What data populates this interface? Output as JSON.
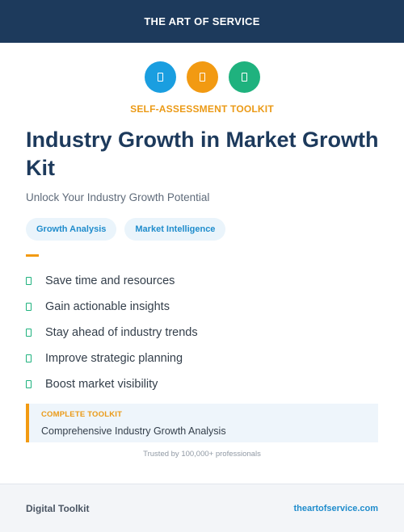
{
  "header": {
    "brand": "THE ART OF SERVICE"
  },
  "icons": [
    {
      "name": "document-icon",
      "color": "#1a9ee0"
    },
    {
      "name": "document-icon",
      "color": "#f29a12"
    },
    {
      "name": "document-icon",
      "color": "#1fb27e"
    }
  ],
  "kicker": "SELF-ASSESSMENT TOOLKIT",
  "title": "Industry Growth in Market Growth Kit",
  "subtitle": "Unlock Your Industry Growth Potential",
  "tags": [
    "Growth Analysis",
    "Market Intelligence"
  ],
  "benefits": [
    "Save time and resources",
    "Gain actionable insights",
    "Stay ahead of industry trends",
    "Improve strategic planning",
    "Boost market visibility"
  ],
  "callout": {
    "label": "COMPLETE TOOLKIT",
    "text": "Comprehensive Industry Growth Analysis"
  },
  "trusted": "Trusted by 100,000+ professionals",
  "footer": {
    "left": "Digital Toolkit",
    "right": "theartofservice.com"
  },
  "colors": {
    "navy": "#1d3a5c",
    "orange": "#f29a12",
    "blue": "#1a9ee0",
    "green": "#1fb27e"
  }
}
